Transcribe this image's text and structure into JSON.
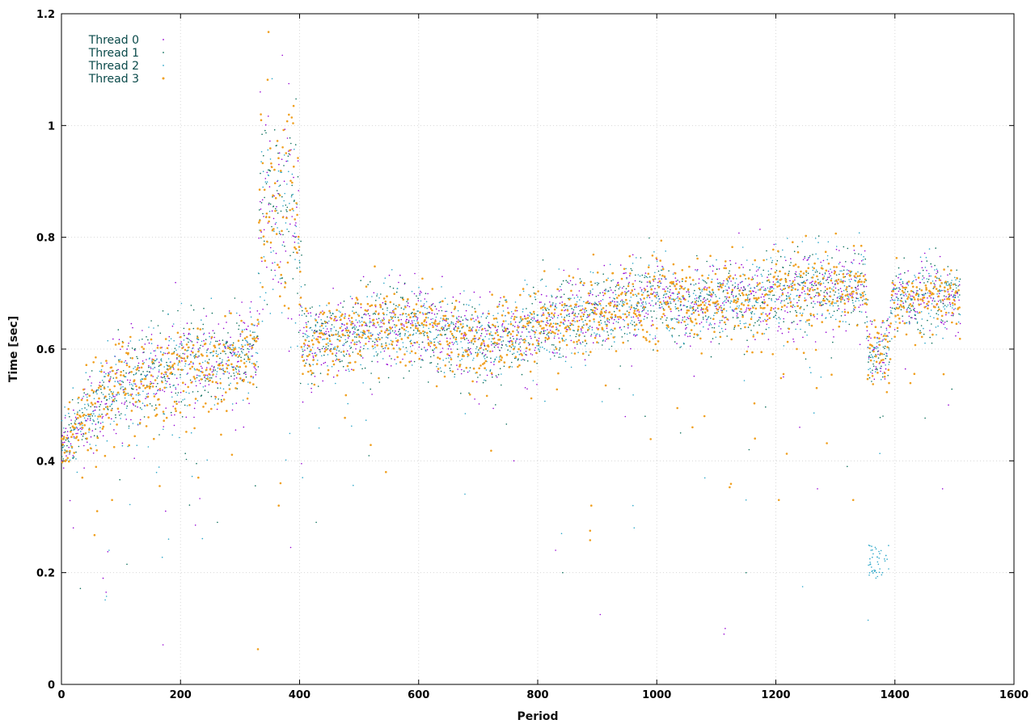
{
  "chart_data": {
    "type": "scatter",
    "title": "",
    "xlabel": "Period",
    "ylabel": "Time [sec]",
    "xlim": [
      0,
      1600
    ],
    "ylim": [
      0,
      1.2
    ],
    "x_ticks": [
      0,
      200,
      400,
      600,
      800,
      1000,
      1200,
      1400,
      1600
    ],
    "y_ticks": [
      0,
      0.2,
      0.4,
      0.6,
      0.8,
      1,
      1.2
    ],
    "x_tick_labels": [
      "0",
      "200",
      "400",
      "600",
      "800",
      "1000",
      "1200",
      "1400",
      "1600"
    ],
    "y_tick_labels": [
      "0",
      "0.2",
      "0.4",
      "0.6",
      "0.8",
      "1",
      "1.2"
    ],
    "grid": true,
    "legend_position": "top-left",
    "series": [
      {
        "name": "Thread 0",
        "color": "#9400d3"
      },
      {
        "name": "Thread 1",
        "color": "#0a6e5a"
      },
      {
        "name": "Thread 2",
        "color": "#2aa6c8"
      },
      {
        "name": "Thread 3",
        "color": "#f0a020"
      }
    ],
    "trend": [
      [
        0,
        0.43
      ],
      [
        20,
        0.46
      ],
      [
        50,
        0.49
      ],
      [
        80,
        0.52
      ],
      [
        100,
        0.54
      ],
      [
        150,
        0.55
      ],
      [
        200,
        0.57
      ],
      [
        250,
        0.58
      ],
      [
        300,
        0.59
      ],
      [
        330,
        0.6
      ],
      [
        335,
        0.88
      ],
      [
        360,
        0.86
      ],
      [
        390,
        0.85
      ],
      [
        398,
        0.8
      ],
      [
        405,
        0.61
      ],
      [
        450,
        0.62
      ],
      [
        500,
        0.63
      ],
      [
        580,
        0.65
      ],
      [
        650,
        0.63
      ],
      [
        700,
        0.62
      ],
      [
        760,
        0.62
      ],
      [
        800,
        0.64
      ],
      [
        850,
        0.66
      ],
      [
        900,
        0.67
      ],
      [
        1000,
        0.69
      ],
      [
        1050,
        0.68
      ],
      [
        1100,
        0.69
      ],
      [
        1200,
        0.7
      ],
      [
        1300,
        0.71
      ],
      [
        1350,
        0.72
      ],
      [
        1355,
        0.59
      ],
      [
        1390,
        0.6
      ],
      [
        1395,
        0.69
      ],
      [
        1510,
        0.69
      ]
    ],
    "spread": [
      [
        0,
        0.03
      ],
      [
        100,
        0.04
      ],
      [
        330,
        0.04
      ],
      [
        335,
        0.09
      ],
      [
        398,
        0.09
      ],
      [
        405,
        0.035
      ],
      [
        1350,
        0.035
      ],
      [
        1355,
        0.03
      ],
      [
        1390,
        0.03
      ],
      [
        1395,
        0.03
      ],
      [
        1510,
        0.03
      ]
    ],
    "outliers": [
      {
        "series": 0,
        "x": 20,
        "y": 0.28
      },
      {
        "series": 0,
        "x": 70,
        "y": 0.19
      },
      {
        "series": 0,
        "x": 75,
        "y": 0.165
      },
      {
        "series": 2,
        "x": 80,
        "y": 0.24
      },
      {
        "series": 1,
        "x": 110,
        "y": 0.215
      },
      {
        "series": 0,
        "x": 175,
        "y": 0.31
      },
      {
        "series": 2,
        "x": 180,
        "y": 0.26
      },
      {
        "series": 3,
        "x": 60,
        "y": 0.31
      },
      {
        "series": 3,
        "x": 85,
        "y": 0.33
      },
      {
        "series": 3,
        "x": 165,
        "y": 0.355
      },
      {
        "series": 3,
        "x": 35,
        "y": 0.37
      },
      {
        "series": 3,
        "x": 230,
        "y": 0.37
      },
      {
        "series": 0,
        "x": 225,
        "y": 0.285
      },
      {
        "series": 1,
        "x": 262,
        "y": 0.29
      },
      {
        "series": 3,
        "x": 330,
        "y": 0.063
      },
      {
        "series": 3,
        "x": 365,
        "y": 0.32
      },
      {
        "series": 3,
        "x": 368,
        "y": 0.36
      },
      {
        "series": 0,
        "x": 385,
        "y": 0.245
      },
      {
        "series": 1,
        "x": 428,
        "y": 0.29
      },
      {
        "series": 2,
        "x": 405,
        "y": 0.37
      },
      {
        "series": 3,
        "x": 545,
        "y": 0.38
      },
      {
        "series": 0,
        "x": 760,
        "y": 0.4
      },
      {
        "series": 0,
        "x": 830,
        "y": 0.24
      },
      {
        "series": 1,
        "x": 842,
        "y": 0.2
      },
      {
        "series": 2,
        "x": 840,
        "y": 0.27
      },
      {
        "series": 3,
        "x": 888,
        "y": 0.275
      },
      {
        "series": 3,
        "x": 888,
        "y": 0.258
      },
      {
        "series": 3,
        "x": 890,
        "y": 0.32
      },
      {
        "series": 0,
        "x": 905,
        "y": 0.125
      },
      {
        "series": 2,
        "x": 960,
        "y": 0.32
      },
      {
        "series": 2,
        "x": 962,
        "y": 0.28
      },
      {
        "series": 0,
        "x": 1113,
        "y": 0.09
      },
      {
        "series": 0,
        "x": 1115,
        "y": 0.1
      },
      {
        "series": 1,
        "x": 1150,
        "y": 0.2
      },
      {
        "series": 2,
        "x": 1150,
        "y": 0.33
      },
      {
        "series": 3,
        "x": 1205,
        "y": 0.33
      },
      {
        "series": 2,
        "x": 1245,
        "y": 0.175
      },
      {
        "series": 0,
        "x": 1270,
        "y": 0.35
      },
      {
        "series": 1,
        "x": 1320,
        "y": 0.39
      },
      {
        "series": 3,
        "x": 1330,
        "y": 0.33
      },
      {
        "series": 2,
        "x": 1355,
        "y": 0.115
      },
      {
        "series": 1,
        "x": 1380,
        "y": 0.48
      },
      {
        "series": 0,
        "x": 1480,
        "y": 0.35
      },
      {
        "series": 0,
        "x": 1490,
        "y": 0.5
      },
      {
        "series": 1,
        "x": 1155,
        "y": 0.42
      },
      {
        "series": 3,
        "x": 1165,
        "y": 0.44
      },
      {
        "series": 0,
        "x": 1240,
        "y": 0.46
      },
      {
        "series": 3,
        "x": 1060,
        "y": 0.46
      },
      {
        "series": 3,
        "x": 1080,
        "y": 0.48
      },
      {
        "series": 1,
        "x": 1040,
        "y": 0.45
      }
    ],
    "cluster_thread2_low": {
      "x_range": [
        1355,
        1390
      ],
      "y_range": [
        0.19,
        0.25
      ]
    },
    "peak_points": [
      {
        "series": 0,
        "x": 334,
        "y": 1.06
      },
      {
        "series": 0,
        "x": 382,
        "y": 1.075
      },
      {
        "series": 3,
        "x": 335,
        "y": 1.02
      },
      {
        "series": 3,
        "x": 390,
        "y": 1.035
      }
    ],
    "point_count_per_series": 1510
  }
}
